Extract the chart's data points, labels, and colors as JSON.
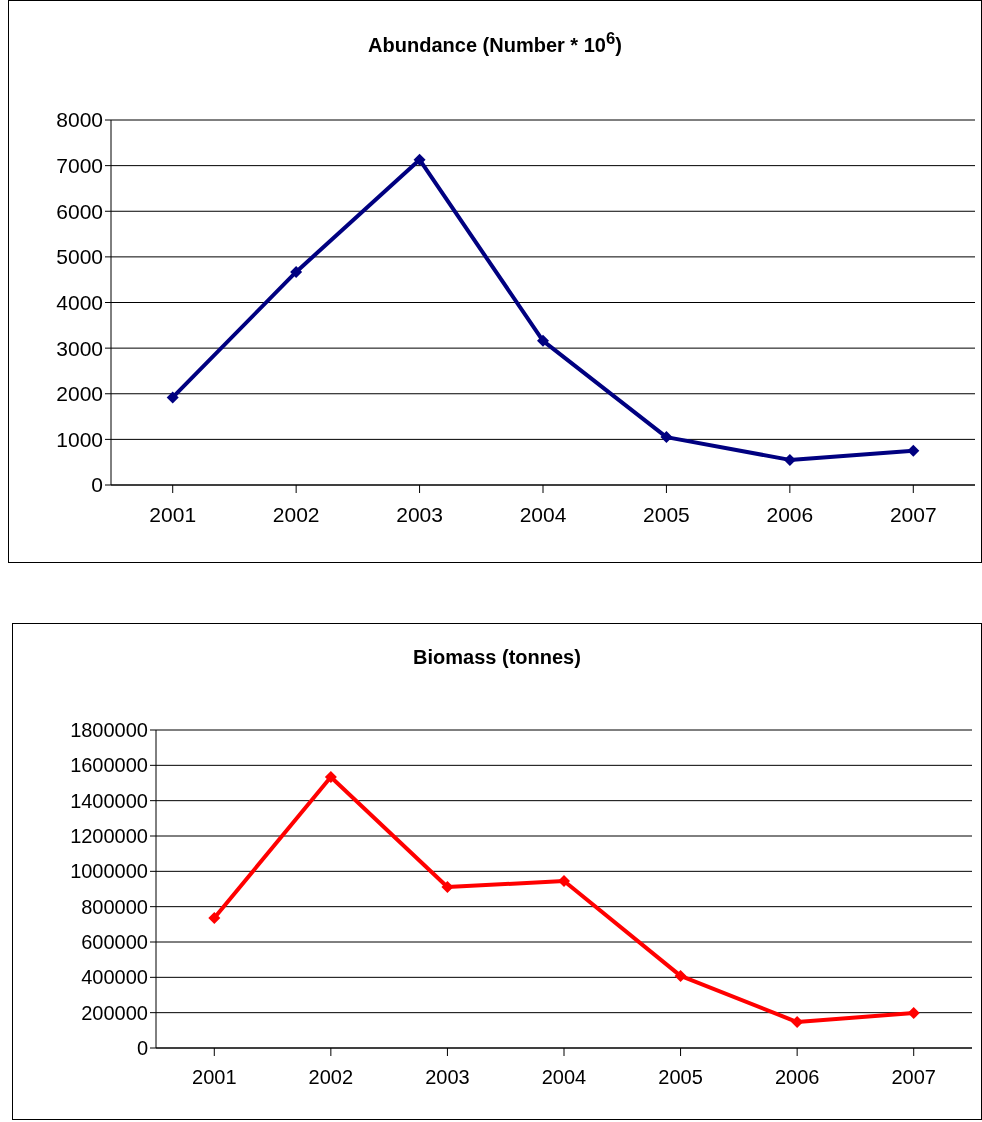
{
  "chart_data": [
    {
      "type": "line",
      "title": "Abundance (Number * 10$^{6}$)",
      "categories": [
        "2001",
        "2002",
        "2003",
        "2004",
        "2005",
        "2006",
        "2007"
      ],
      "series": [
        {
          "color": "#000080",
          "values": [
            1920,
            4670,
            7130,
            3160,
            1050,
            550,
            750
          ]
        }
      ],
      "ylim": [
        0,
        8000
      ],
      "yticks": [
        0,
        1000,
        2000,
        3000,
        4000,
        5000,
        6000,
        7000,
        8000
      ],
      "grid": "y",
      "marker": "diamond",
      "legend": false
    },
    {
      "type": "line",
      "title": "Biomass (tonnes)",
      "categories": [
        "2001",
        "2002",
        "2003",
        "2004",
        "2005",
        "2006",
        "2007"
      ],
      "series": [
        {
          "color": "#ff0000",
          "values": [
            736000,
            1534000,
            911000,
            945000,
            408000,
            147000,
            198000
          ]
        }
      ],
      "ylim": [
        0,
        1800000
      ],
      "yticks": [
        0,
        200000,
        400000,
        600000,
        800000,
        1000000,
        1200000,
        1400000,
        1600000,
        1800000
      ],
      "grid": "y",
      "marker": "diamond",
      "legend": false
    }
  ]
}
